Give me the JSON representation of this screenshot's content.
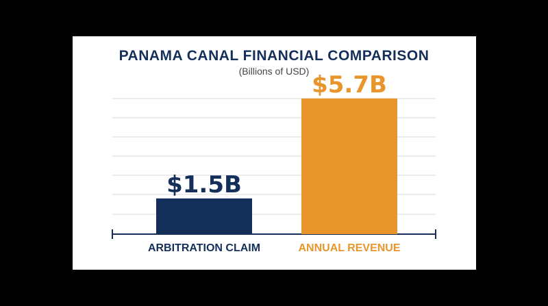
{
  "chart_data": {
    "type": "bar",
    "title": "PANAMA CANAL FINANCIAL COMPARISON",
    "subtitle": "(Billions of USD)",
    "categories": [
      "ARBITRATION CLAIM",
      "ANNUAL REVENUE"
    ],
    "values": [
      1.5,
      5.7
    ],
    "value_labels": [
      "$1.5B",
      "$5.7B"
    ],
    "colors": [
      "#14305a",
      "#e8962c"
    ],
    "ylim": [
      0,
      6.5
    ],
    "grid": true,
    "xlabel": "",
    "ylabel": ""
  }
}
